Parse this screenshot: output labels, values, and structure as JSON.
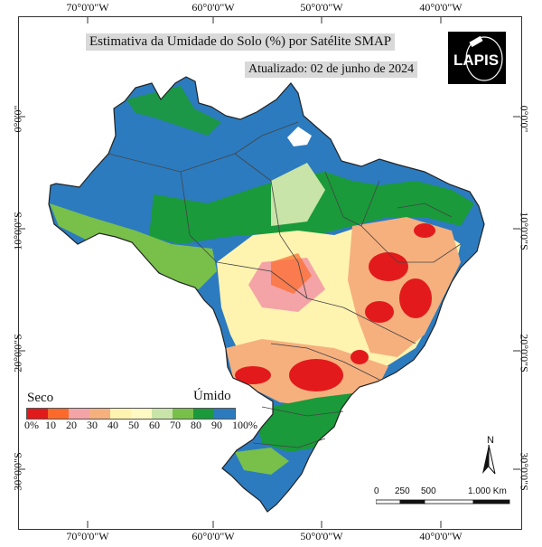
{
  "title": "Estimativa da Umidade do Solo (%) por Satélite SMAP",
  "updated": "Atualizado: 02 de junho de 2024",
  "logo": {
    "text": "LAPIS"
  },
  "axis": {
    "longitudes": [
      "70°0'0\"W",
      "60°0'0\"W",
      "50°0'0\"W",
      "40°0'0\"W"
    ],
    "latitudes": [
      "0°0'0\"",
      "10°0'0\"S",
      "20°0'0\"S",
      "30°0'0\"S"
    ]
  },
  "legend": {
    "dry_label": "Seco",
    "wet_label": "Úmido",
    "ticks": [
      "0%",
      "10",
      "20",
      "30",
      "40",
      "50",
      "60",
      "70",
      "80",
      "90",
      "100%"
    ],
    "colors": [
      "#e31a1c",
      "#fb6a2a",
      "#f4a3a6",
      "#f6b07e",
      "#fff3b0",
      "#fff9c4",
      "#c9e4a8",
      "#78c04a",
      "#1a9a3a",
      "#2c7bbf"
    ]
  },
  "north": {
    "label": "N"
  },
  "scale": {
    "labels": [
      "0",
      "250",
      "500",
      "1.000 Km"
    ]
  }
}
